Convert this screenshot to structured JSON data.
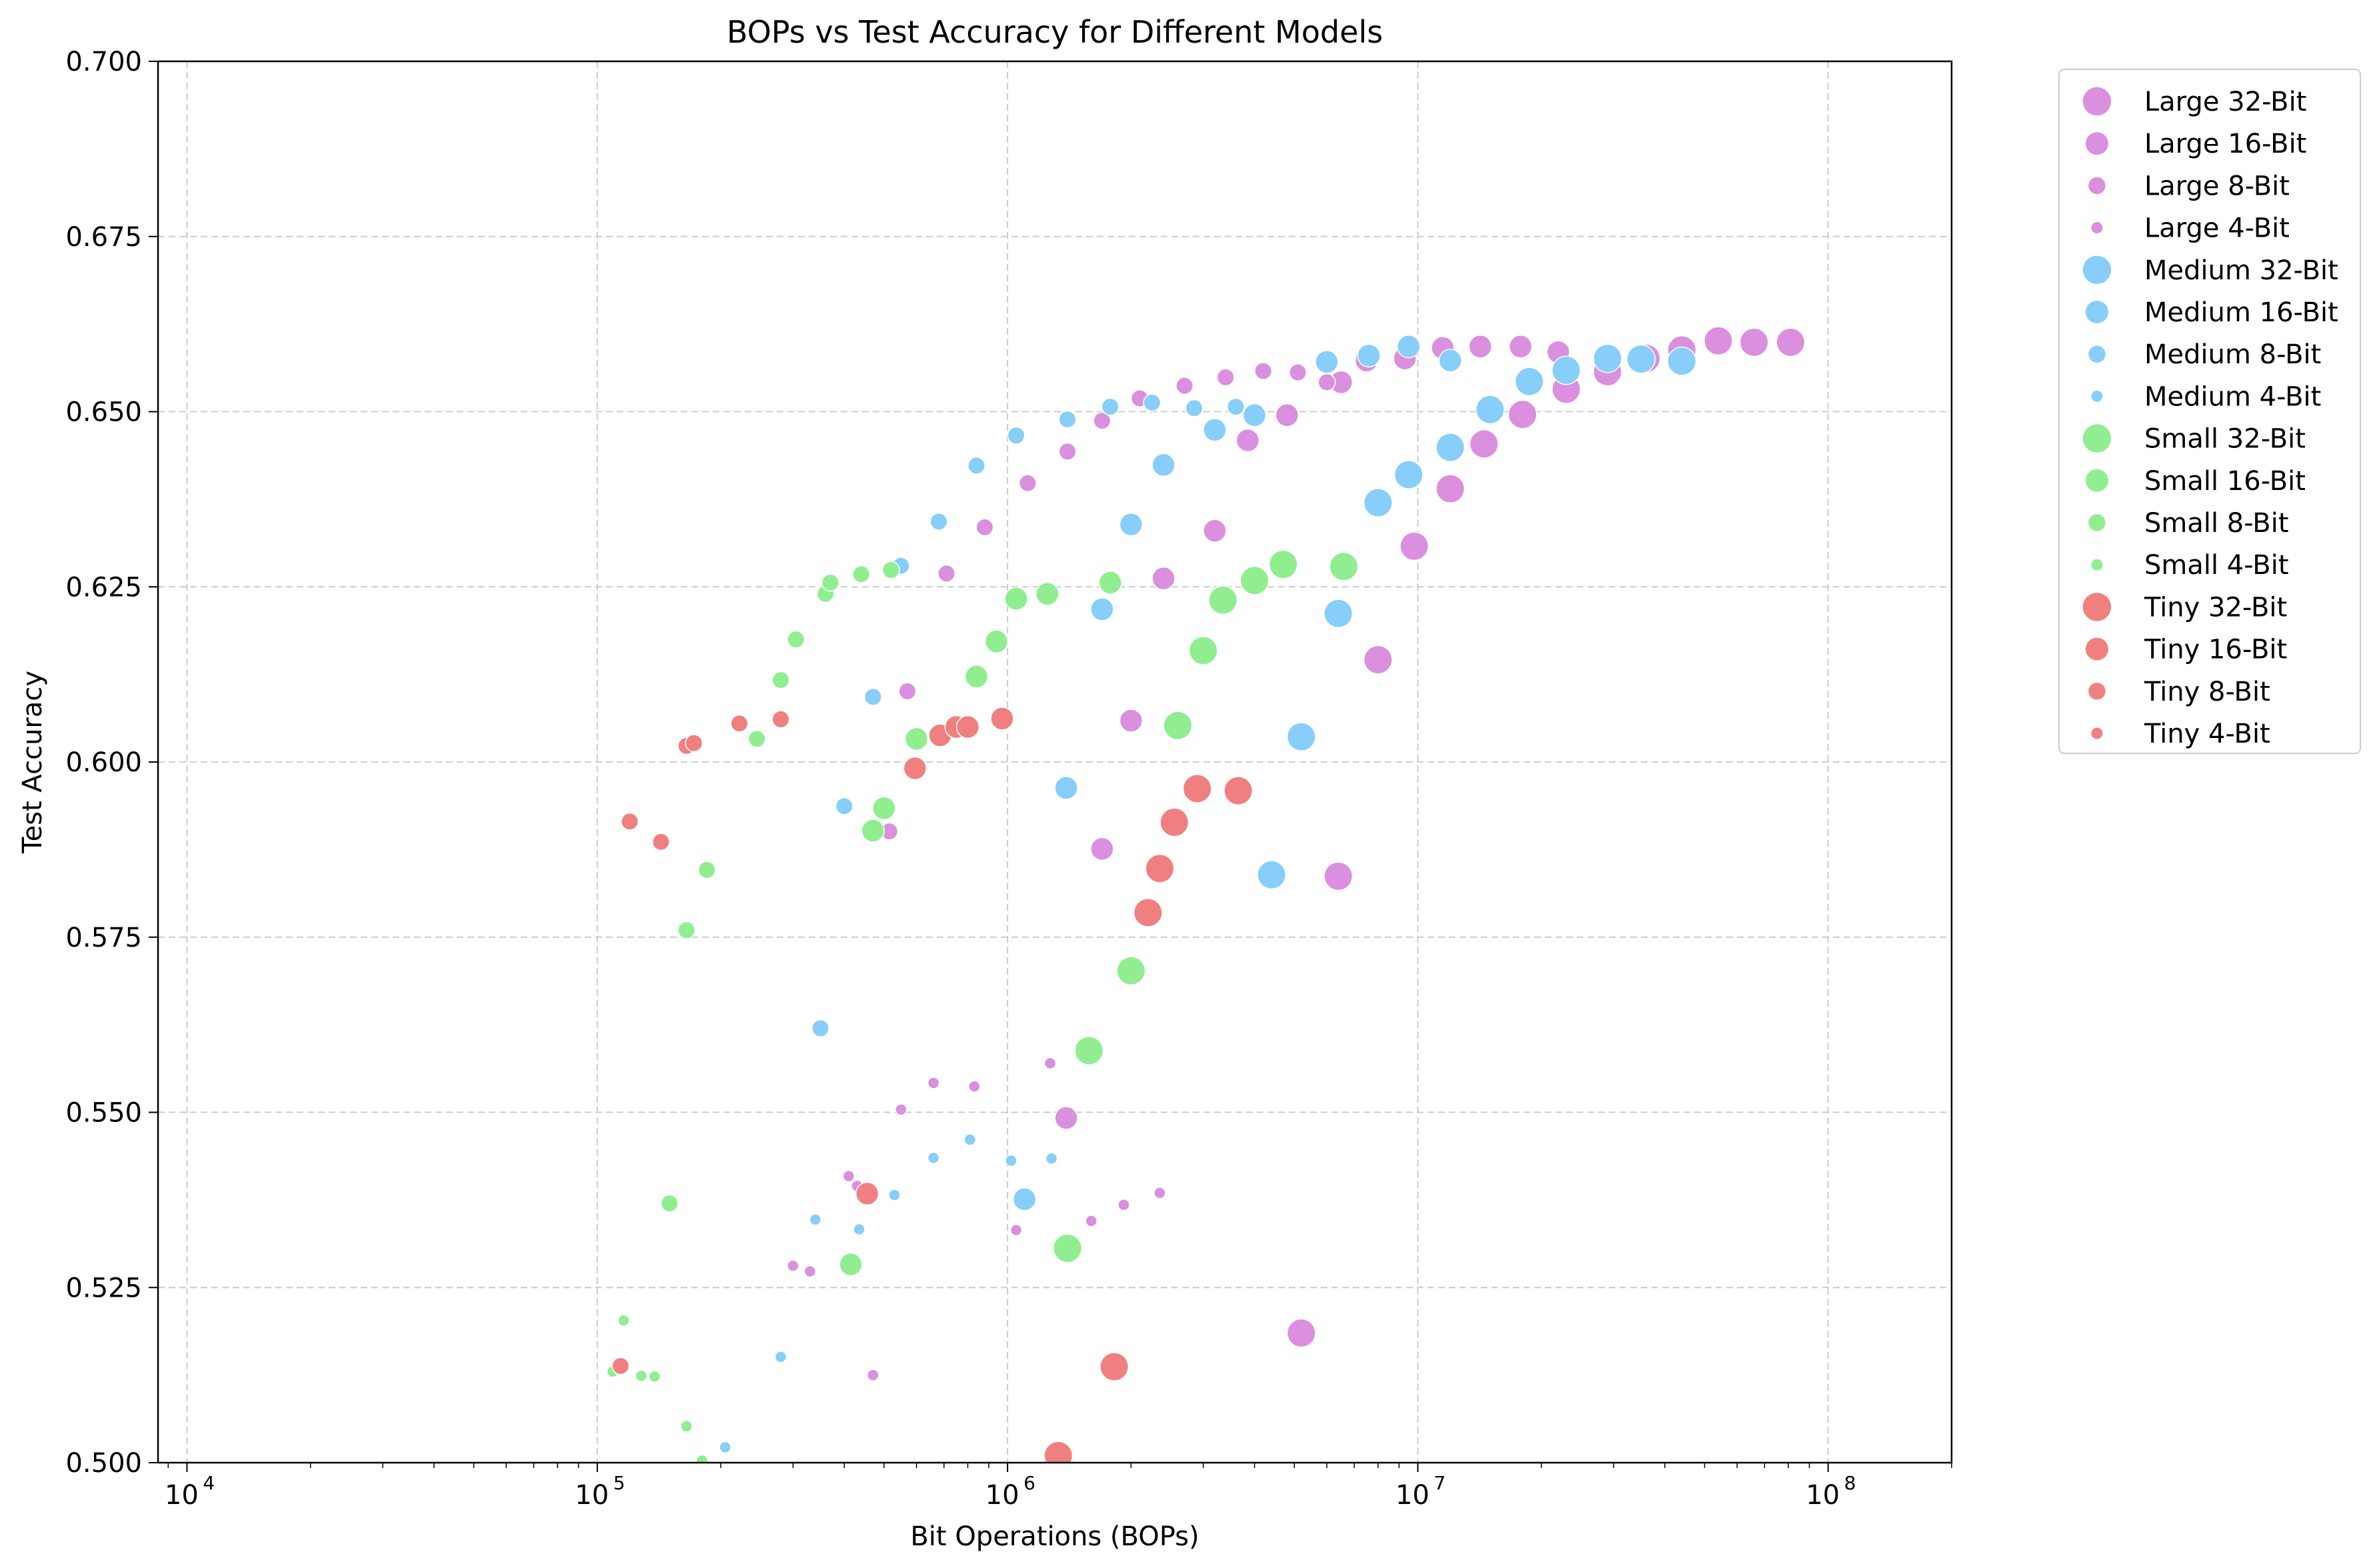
{
  "chart_data": {
    "type": "scatter",
    "title": "BOPs vs Test Accuracy for Different Models",
    "xlabel": "Bit Operations (BOPs)",
    "ylabel": "Test Accuracy",
    "xscale": "log",
    "xlim": [
      8500,
      200000000
    ],
    "ylim": [
      0.5,
      0.7
    ],
    "xticks": [
      {
        "value": 10000,
        "base": "10",
        "exp": "4"
      },
      {
        "value": 100000,
        "base": "10",
        "exp": "5"
      },
      {
        "value": 1000000,
        "base": "10",
        "exp": "6"
      },
      {
        "value": 10000000,
        "base": "10",
        "exp": "7"
      },
      {
        "value": 100000000,
        "base": "10",
        "exp": "8"
      }
    ],
    "yticks": [
      "0.500",
      "0.525",
      "0.550",
      "0.575",
      "0.600",
      "0.625",
      "0.650",
      "0.675",
      "0.700"
    ],
    "grid": true,
    "legend_position": "outside right",
    "series": [
      {
        "name": "Large 32-Bit",
        "color": "#da8fdf",
        "marker_size": 4,
        "points": [
          [
            6400000.0,
            0.5837
          ],
          [
            5200000.0,
            0.5185
          ],
          [
            8000000.0,
            0.6146
          ],
          [
            9800000.0,
            0.6308
          ],
          [
            12000000.0,
            0.639
          ],
          [
            14500000.0,
            0.6454
          ],
          [
            18000000.0,
            0.6496
          ],
          [
            23000000.0,
            0.6532
          ],
          [
            29000000.0,
            0.6557
          ],
          [
            36000000.0,
            0.6576
          ],
          [
            44000000.0,
            0.6588
          ],
          [
            54000000.0,
            0.6601
          ],
          [
            66000000.0,
            0.6599
          ],
          [
            81000000.0,
            0.6599
          ]
        ]
      },
      {
        "name": "Large 16-Bit",
        "color": "#da8fdf",
        "marker_size": 3.2,
        "points": [
          [
            1390000.0,
            0.5492
          ],
          [
            1700000.0,
            0.5876
          ],
          [
            2000000.0,
            0.6059
          ],
          [
            2400000.0,
            0.6262
          ],
          [
            3200000.0,
            0.633
          ],
          [
            3850000.0,
            0.6459
          ],
          [
            4800000.0,
            0.6495
          ],
          [
            6500000.0,
            0.6542
          ],
          [
            7500000.0,
            0.6573
          ],
          [
            9300000.0,
            0.6576
          ],
          [
            11500000.0,
            0.6591
          ],
          [
            14200000.0,
            0.6593
          ],
          [
            17800000.0,
            0.6593
          ],
          [
            22000000.0,
            0.6585
          ]
        ]
      },
      {
        "name": "Large 8-Bit",
        "color": "#da8fdf",
        "marker_size": 2.4,
        "points": [
          [
            515000.0,
            0.5901
          ],
          [
            570000.0,
            0.6101
          ],
          [
            710000.0,
            0.6269
          ],
          [
            880000.0,
            0.6335
          ],
          [
            1120000.0,
            0.6398
          ],
          [
            1400000.0,
            0.6443
          ],
          [
            1700000.0,
            0.6487
          ],
          [
            2100000.0,
            0.6519
          ],
          [
            2700000.0,
            0.6537
          ],
          [
            3400000.0,
            0.6549
          ],
          [
            4200000.0,
            0.6558
          ],
          [
            5100000.0,
            0.6556
          ],
          [
            6000000.0,
            0.6542
          ]
        ]
      },
      {
        "name": "Large 4-Bit",
        "color": "#da8fdf",
        "marker_size": 1.6,
        "points": [
          [
            300000.0,
            0.5281
          ],
          [
            330000.0,
            0.5273
          ],
          [
            410000.0,
            0.5409
          ],
          [
            430000.0,
            0.5395
          ],
          [
            470000.0,
            0.5125
          ],
          [
            550000.0,
            0.5504
          ],
          [
            660000.0,
            0.5542
          ],
          [
            830000.0,
            0.5537
          ],
          [
            1050000.0,
            0.5332
          ],
          [
            1270000.0,
            0.557
          ],
          [
            1600000.0,
            0.5345
          ],
          [
            1920000.0,
            0.5368
          ],
          [
            2350000.0,
            0.5385
          ]
        ]
      },
      {
        "name": "Medium 32-Bit",
        "color": "#87cefa",
        "marker_size": 4,
        "points": [
          [
            4400000.0,
            0.5839
          ],
          [
            5200000.0,
            0.6036
          ],
          [
            6400000.0,
            0.6212
          ],
          [
            8000000.0,
            0.637
          ],
          [
            9500000.0,
            0.641
          ],
          [
            12000000.0,
            0.6449
          ],
          [
            15000000.0,
            0.6503
          ],
          [
            18700000.0,
            0.6543
          ],
          [
            23000000.0,
            0.6559
          ],
          [
            29000000.0,
            0.6576
          ],
          [
            35000000.0,
            0.6575
          ],
          [
            44000000.0,
            0.6572
          ]
        ]
      },
      {
        "name": "Medium 16-Bit",
        "color": "#87cefa",
        "marker_size": 3.2,
        "points": [
          [
            1100000.0,
            0.5376
          ],
          [
            1390000.0,
            0.5963
          ],
          [
            1700000.0,
            0.6218
          ],
          [
            2000000.0,
            0.6339
          ],
          [
            2400000.0,
            0.6424
          ],
          [
            3200000.0,
            0.6474
          ],
          [
            4000000.0,
            0.6495
          ],
          [
            6000000.0,
            0.6571
          ],
          [
            7600000.0,
            0.658
          ],
          [
            9500000.0,
            0.6593
          ],
          [
            12000000.0,
            0.6573
          ]
        ]
      },
      {
        "name": "Medium 8-Bit",
        "color": "#87cefa",
        "marker_size": 2.4,
        "points": [
          [
            350000.0,
            0.562
          ],
          [
            400000.0,
            0.5937
          ],
          [
            470000.0,
            0.6093
          ],
          [
            550000.0,
            0.628
          ],
          [
            680000.0,
            0.6343
          ],
          [
            840000.0,
            0.6423
          ],
          [
            1050000.0,
            0.6466
          ],
          [
            1400000.0,
            0.6489
          ],
          [
            1780000.0,
            0.6507
          ],
          [
            2250000.0,
            0.6513
          ],
          [
            2850000.0,
            0.6505
          ],
          [
            3600000.0,
            0.6507
          ]
        ]
      },
      {
        "name": "Medium 4-Bit",
        "color": "#87cefa",
        "marker_size": 1.6,
        "points": [
          [
            205000.0,
            0.5022
          ],
          [
            280000.0,
            0.5151
          ],
          [
            340000.0,
            0.5347
          ],
          [
            435000.0,
            0.5333
          ],
          [
            530000.0,
            0.5382
          ],
          [
            660000.0,
            0.5435
          ],
          [
            810000.0,
            0.5461
          ],
          [
            1020000.0,
            0.5431
          ],
          [
            1280000.0,
            0.5434
          ]
        ]
      },
      {
        "name": "Small 32-Bit",
        "color": "#90ee90",
        "marker_size": 4,
        "points": [
          [
            1400000.0,
            0.5306
          ],
          [
            1580000.0,
            0.5588
          ],
          [
            2000000.0,
            0.5702
          ],
          [
            2600000.0,
            0.6052
          ],
          [
            3000000.0,
            0.6159
          ],
          [
            3350000.0,
            0.6231
          ],
          [
            4000000.0,
            0.6259
          ],
          [
            4700000.0,
            0.6282
          ],
          [
            6600000.0,
            0.6279
          ]
        ]
      },
      {
        "name": "Small 16-Bit",
        "color": "#90ee90",
        "marker_size": 3.2,
        "points": [
          [
            415000.0,
            0.5283
          ],
          [
            470000.0,
            0.5902
          ],
          [
            500000.0,
            0.5934
          ],
          [
            600000.0,
            0.6033
          ],
          [
            840000.0,
            0.6122
          ],
          [
            940000.0,
            0.6172
          ],
          [
            1050000.0,
            0.6233
          ],
          [
            1250000.0,
            0.624
          ],
          [
            1780000.0,
            0.6256
          ]
        ]
      },
      {
        "name": "Small 8-Bit",
        "color": "#90ee90",
        "marker_size": 2.4,
        "points": [
          [
            150000.0,
            0.537
          ],
          [
            165000.0,
            0.576
          ],
          [
            185000.0,
            0.5846
          ],
          [
            245000.0,
            0.6033
          ],
          [
            280000.0,
            0.6117
          ],
          [
            305000.0,
            0.6175
          ],
          [
            360000.0,
            0.624
          ],
          [
            370000.0,
            0.6256
          ],
          [
            440000.0,
            0.6268
          ],
          [
            520000.0,
            0.6274
          ]
        ]
      },
      {
        "name": "Small 4-Bit",
        "color": "#90ee90",
        "marker_size": 1.6,
        "points": [
          [
            109000.0,
            0.513
          ],
          [
            116000.0,
            0.5203
          ],
          [
            128000.0,
            0.5124
          ],
          [
            138000.0,
            0.5123
          ],
          [
            165000.0,
            0.5052
          ],
          [
            180000.0,
            0.5003
          ]
        ]
      },
      {
        "name": "Tiny 32-Bit",
        "color": "#f08080",
        "marker_size": 4,
        "points": [
          [
            1330000.0,
            0.501
          ],
          [
            1820000.0,
            0.5137
          ],
          [
            2200000.0,
            0.5785
          ],
          [
            2350000.0,
            0.5848
          ],
          [
            2550000.0,
            0.5914
          ],
          [
            2900000.0,
            0.5962
          ],
          [
            3650000.0,
            0.5959
          ]
        ]
      },
      {
        "name": "Tiny 16-Bit",
        "color": "#f08080",
        "marker_size": 3.2,
        "points": [
          [
            455000.0,
            0.5384
          ],
          [
            595000.0,
            0.5991
          ],
          [
            685000.0,
            0.6038
          ],
          [
            750000.0,
            0.605
          ],
          [
            800000.0,
            0.605
          ],
          [
            970000.0,
            0.6062
          ]
        ]
      },
      {
        "name": "Tiny 8-Bit",
        "color": "#f08080",
        "marker_size": 2.4,
        "points": [
          [
            114000.0,
            0.5138
          ],
          [
            120000.0,
            0.5915
          ],
          [
            143000.0,
            0.5886
          ],
          [
            165000.0,
            0.6023
          ],
          [
            172000.0,
            0.6027
          ],
          [
            222000.0,
            0.6055
          ],
          [
            280000.0,
            0.6061
          ]
        ]
      },
      {
        "name": "Tiny 4-Bit",
        "color": "#f08080",
        "marker_size": 1.6,
        "points": []
      }
    ]
  }
}
